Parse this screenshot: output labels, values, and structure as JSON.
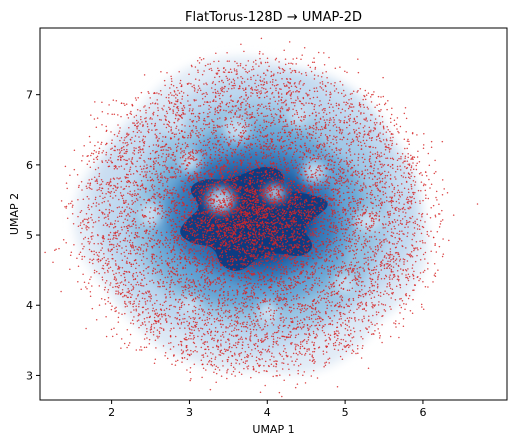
{
  "chart_data": {
    "type": "scatter",
    "title": "FlatTorus-128D → UMAP-2D",
    "xlabel": "UMAP 1",
    "ylabel": "UMAP 2",
    "xlim": [
      1.08,
      7.08
    ],
    "ylim": [
      2.65,
      7.95
    ],
    "xticks": [
      2,
      3,
      4,
      5,
      6
    ],
    "yticks": [
      3,
      4,
      5,
      6,
      7
    ],
    "grid": false,
    "legend": "none",
    "point_count_estimate": 9000,
    "point_color": "#d62728",
    "density_colormap": "Blues",
    "density_levels": [
      "#dce8f5",
      "#bad6ee",
      "#8fbfe0",
      "#5d9fd1",
      "#2f73b5",
      "#0f4a96",
      "#0a2f6b"
    ],
    "distribution": {
      "type": "elliptical-cloud",
      "center": [
        3.85,
        5.25
      ],
      "x_range": [
        1.45,
        6.1
      ],
      "y_range": [
        3.05,
        7.55
      ],
      "dense_core": {
        "center": [
          3.8,
          5.25
        ],
        "x_range": [
          2.8,
          4.7
        ],
        "y_range": [
          4.55,
          6.0
        ]
      },
      "holes": [
        [
          3.0,
          6.05
        ],
        [
          4.6,
          5.9
        ],
        [
          3.6,
          6.5
        ],
        [
          4.4,
          6.7
        ],
        [
          2.5,
          5.3
        ],
        [
          5.3,
          5.2
        ],
        [
          4.0,
          3.9
        ],
        [
          3.0,
          4.0
        ],
        [
          5.0,
          4.3
        ],
        [
          2.8,
          6.6
        ],
        [
          3.4,
          5.5
        ],
        [
          4.1,
          5.6
        ]
      ]
    }
  }
}
